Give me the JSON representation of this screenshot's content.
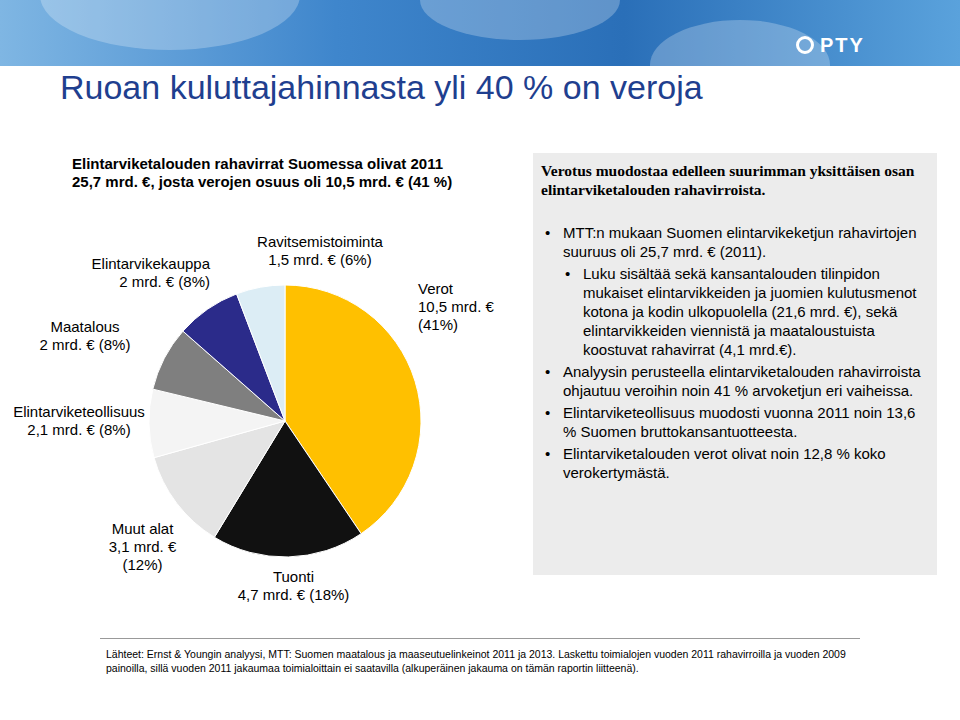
{
  "header": {
    "logo": "PTY",
    "title": "Ruoan kuluttajahinnasta yli 40 % on veroja"
  },
  "chart_data": {
    "type": "pie",
    "title": "Elintarviketalouden rahavirrat Suomessa olivat 2011 25,7 mrd. €, josta verojen osuus oli 10,5 mrd. € (41 %)",
    "categories": [
      "Verot",
      "Tuonti",
      "Muut alat",
      "Elintarviketeollisuus",
      "Maatalous",
      "Elintarvikekauppa",
      "Ravitsemistoiminta"
    ],
    "values": [
      10.5,
      4.7,
      3.1,
      2.1,
      2,
      2,
      1.5
    ],
    "value_labels": [
      "10,5 mrd. € (41%)",
      "4,7 mrd. € (18%)",
      "3,1 mrd. € (12%)",
      "2,1 mrd. € (8%)",
      "2 mrd. € (8%)",
      "2 mrd. € (8%)",
      "1,5 mrd. € (6%)"
    ],
    "colors": [
      "#ffc000",
      "#111111",
      "#e4e4e4",
      "#f4f4f4",
      "#7f7f7f",
      "#2b2b8a",
      "#dcedf5"
    ],
    "data_labels": true,
    "legend": false
  },
  "panel": {
    "heading": "Verotus muodostaa edelleen suurimman yksittäisen osan elintarviketalouden rahavirroista.",
    "bullets": [
      {
        "text": "MTT:n mukaan Suomen elintarvikeketjun rahavirtojen suuruus oli 25,7 mrd. € (2011).",
        "sub": [
          "Luku sisältää sekä kansantalouden tilinpidon mukaiset elintarvikkeiden ja juomien kulutusmenot kotona ja kodin ulkopuolella (21,6 mrd. €), sekä elintarvikkeiden viennistä ja maataloustuista koostuvat rahavirrat (4,1 mrd.€)."
        ]
      },
      {
        "text": "Analyysin perusteella elintarviketalouden rahavirroista ohjautuu veroihin noin 41 % arvoketjun eri vaiheissa.",
        "sub": []
      },
      {
        "text": "Elintarviketeollisuus muodosti vuonna 2011 noin 13,6 % Suomen bruttokansantuotteesta.",
        "sub": []
      },
      {
        "text": "Elintarviketalouden verot olivat noin 12,8 % koko verokertymästä.",
        "sub": []
      }
    ]
  },
  "footer": {
    "sources": "Lähteet: Ernst & Youngin analyysi, MTT: Suomen maatalous ja maaseutuelinkeinot 2011 ja 2013. Laskettu toimialojen vuoden 2011 rahavirroilla ja vuoden 2009 painoilla, sillä vuoden 2011 jakaumaa toimialoittain ei saatavilla (alkuperäinen jakauma on tämän raportin liitteenä)."
  }
}
